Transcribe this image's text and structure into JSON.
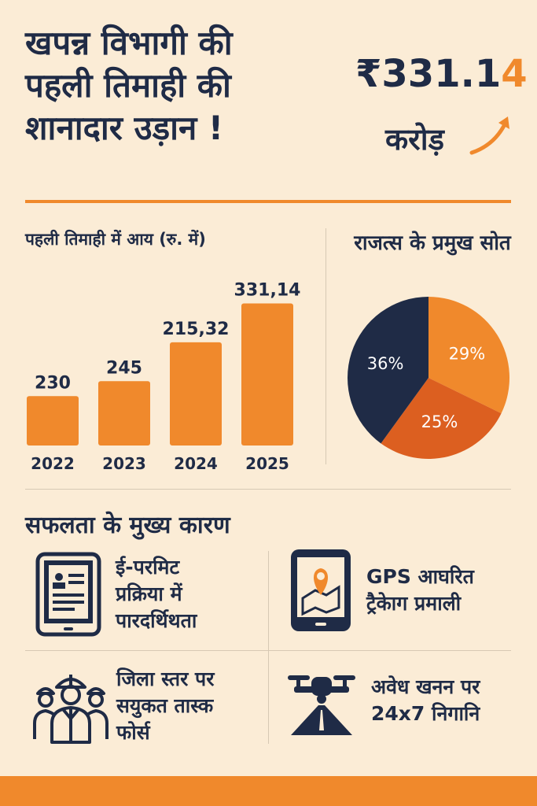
{
  "header": {
    "title_lines": [
      "खपन्न विभागी की",
      "पहली तिमाही की",
      "शानादार उड़ान !"
    ],
    "amount_main": "₹331.1",
    "amount_last": "4",
    "amount_unit": "करोड़"
  },
  "colors": {
    "background": "#fbecd6",
    "accent_orange": "#f0892c",
    "dark_orange": "#dc5f20",
    "navy": "#1f2b46"
  },
  "chart_data": [
    {
      "type": "bar",
      "title": "पहली तिमाही में आय (रु. में)",
      "categories": [
        "2022",
        "2023",
        "2024",
        "2025"
      ],
      "values": [
        230,
        245,
        215.32,
        331.14
      ],
      "value_labels": [
        "230",
        "245",
        "215,32",
        "331,14"
      ],
      "bar_heights_shown": [
        66,
        86,
        138,
        190
      ],
      "ylim": [
        0,
        200
      ],
      "grid": false,
      "color": "#f0892c"
    },
    {
      "type": "pie",
      "title": "राजत्स के प्रमुख सोत",
      "slices": [
        {
          "label": "29%",
          "value": 29,
          "color": "#f0892c"
        },
        {
          "label": "25%",
          "value": 25,
          "color": "#dc5f20"
        },
        {
          "label": "36%",
          "value": 36,
          "color": "#1f2b46"
        }
      ]
    }
  ],
  "reasons": {
    "title": "सफलता के मुख्य कारण",
    "items": [
      {
        "icon": "document-tablet-icon",
        "lines": [
          "ई-परमिट",
          "प्रक्रिया में",
          "पारदर्थिथता"
        ]
      },
      {
        "icon": "map-pin-tablet-icon",
        "lines": [
          "GPS आघरित",
          "ट्रैकेाग प्रमाली"
        ]
      },
      {
        "icon": "workers-group-icon",
        "lines": [
          "जिला स्तर पर",
          "सयुकत तास्क",
          "फोर्स"
        ]
      },
      {
        "icon": "drone-icon",
        "lines": [
          "अवेध खनन पर",
          "24x7 निगानि"
        ]
      }
    ]
  }
}
